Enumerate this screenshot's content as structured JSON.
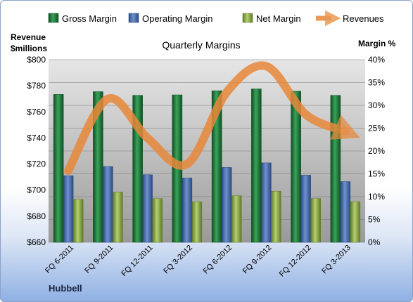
{
  "chart_data": {
    "type": "bar",
    "title": "Quarterly Margins",
    "company": "Hubbell",
    "left_axis": {
      "label_line1": "Revenue",
      "label_line2": "$millions",
      "range": [
        660,
        800
      ],
      "ticks": [
        "$660",
        "$680",
        "$700",
        "$720",
        "$740",
        "$760",
        "$780",
        "$800"
      ]
    },
    "right_axis": {
      "label": "Margin %",
      "range": [
        0,
        40
      ],
      "ticks": [
        "0%",
        "5%",
        "10%",
        "15%",
        "20%",
        "25%",
        "30%",
        "35%",
        "40%"
      ]
    },
    "categories": [
      "FQ 6-2011",
      "FQ 9-2011",
      "FQ 12-2011",
      "FQ 3-2012",
      "FQ 6-2012",
      "FQ 9-2012",
      "FQ 12-2012",
      "FQ 3-2013"
    ],
    "bar_series": [
      {
        "name": "Gross Margin",
        "color": "#1e7a3c",
        "values": [
          32.4,
          33.0,
          32.2,
          32.3,
          33.2,
          33.6,
          33.1,
          32.2
        ]
      },
      {
        "name": "Operating Margin",
        "color": "#4a6fb0",
        "values": [
          14.6,
          16.6,
          14.8,
          14.1,
          16.4,
          17.4,
          14.7,
          13.3
        ]
      },
      {
        "name": "Net Margin",
        "color": "#8fae4a",
        "values": [
          9.4,
          11.0,
          9.6,
          8.9,
          10.2,
          11.2,
          9.6,
          8.9
        ]
      }
    ],
    "line_series": {
      "name": "Revenues",
      "color": "#e8883a",
      "values": [
        715,
        770,
        740,
        720,
        775,
        795,
        758,
        745
      ]
    },
    "legend_position": "top",
    "grid": true
  }
}
